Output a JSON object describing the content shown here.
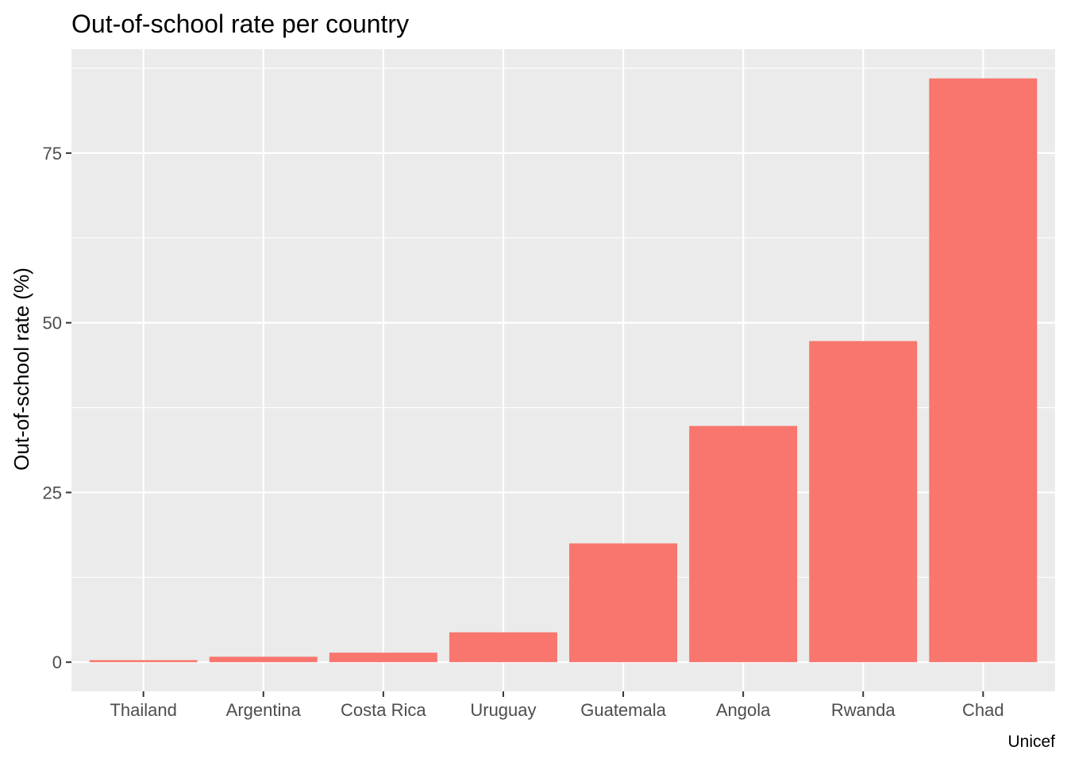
{
  "chart_data": {
    "type": "bar",
    "title": "Out-of-school rate per country",
    "xlabel": "",
    "ylabel": "Out-of-school rate (%)",
    "caption": "Unicef",
    "categories": [
      "Thailand",
      "Argentina",
      "Costa Rica",
      "Uruguay",
      "Guatemala",
      "Angola",
      "Rwanda",
      "Chad"
    ],
    "values": [
      0.3,
      0.8,
      1.4,
      4.4,
      17.5,
      34.8,
      47.3,
      86.0
    ],
    "ylim": [
      -4.3,
      90.3
    ],
    "yticks": [
      0,
      25,
      50,
      75
    ],
    "ytick_labels": [
      "0",
      "25",
      "50",
      "75"
    ],
    "grid": true,
    "bar_color": "#F8766D",
    "panel_color": "#EBEBEB",
    "grid_color": "#FFFFFF"
  }
}
